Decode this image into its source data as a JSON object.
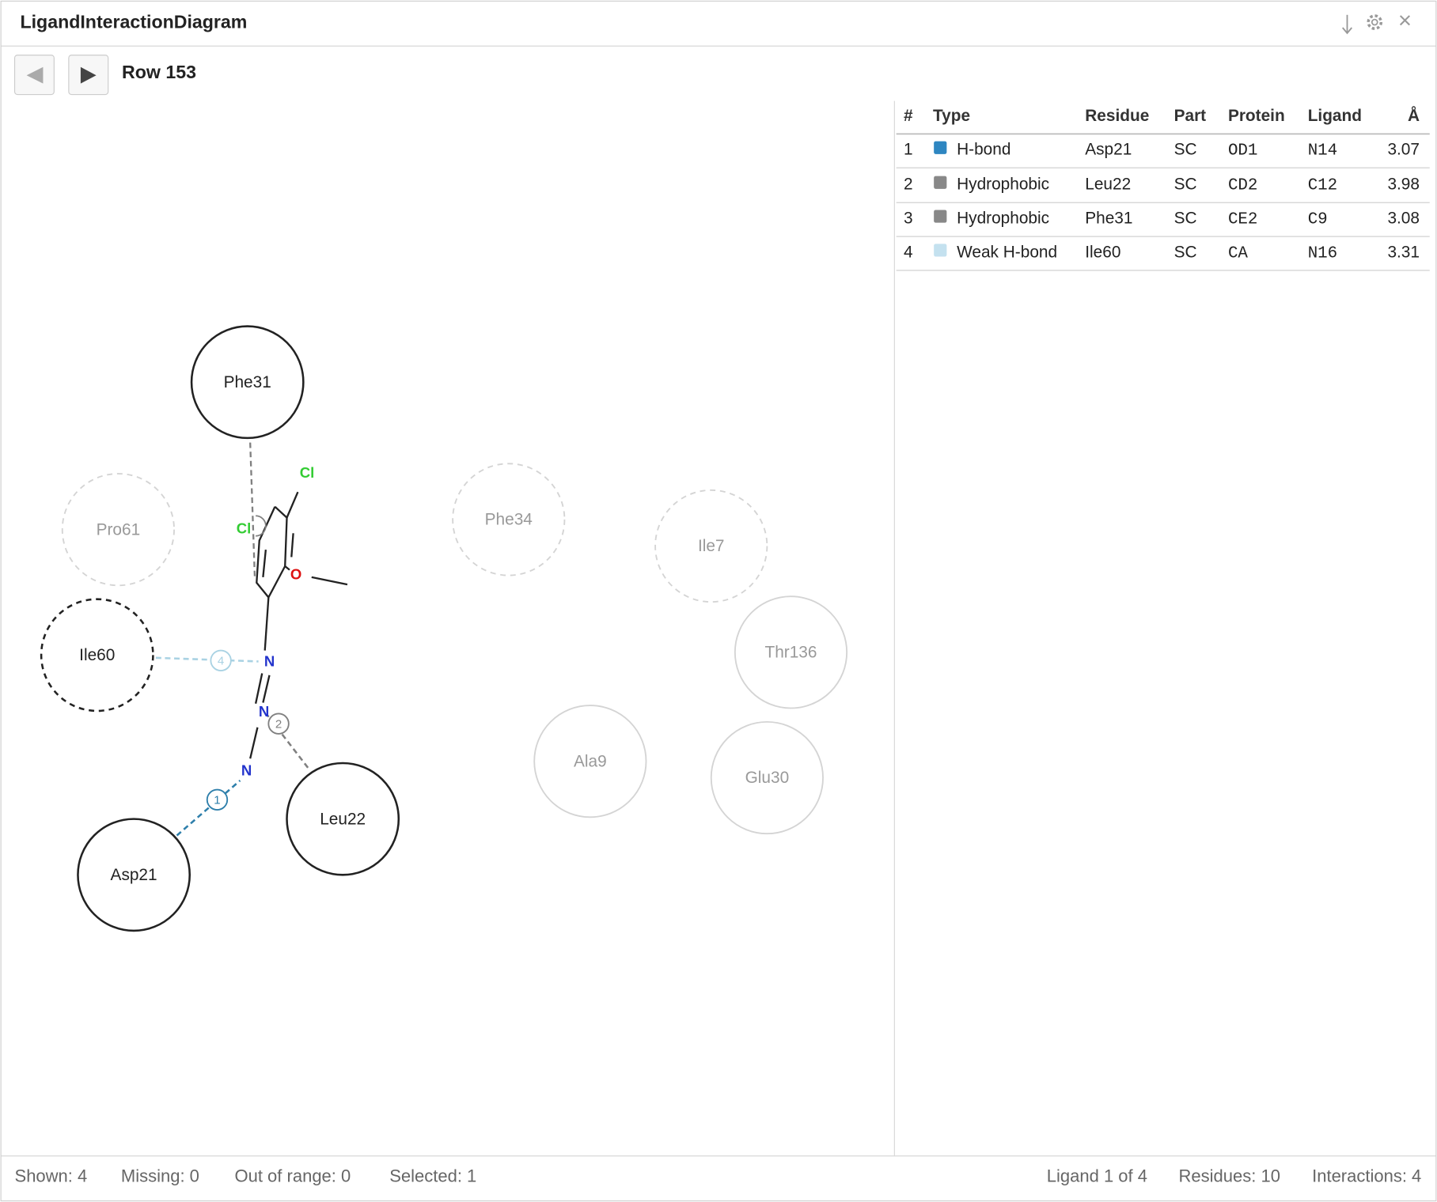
{
  "header": {
    "title": "LigandInteractionDiagram"
  },
  "toolbar": {
    "row_label": "Row 153"
  },
  "diagram": {
    "residues": [
      "Phe31",
      "Pro61",
      "Phe34",
      "Ile7",
      "Thr136",
      "Ile60",
      "Ala9",
      "Glu30",
      "Asp21",
      "Leu22"
    ],
    "atoms": [
      "Cl",
      "Cl",
      "O",
      "N",
      "N",
      "N"
    ],
    "interactions": [
      {
        "badge": 1,
        "color": "#2e7fab"
      },
      {
        "badge": 2,
        "color": "#808080"
      },
      {
        "badge": 4,
        "color": "#a9d2e3"
      }
    ]
  },
  "table": {
    "columns": [
      "#",
      "Type",
      "Residue",
      "Part",
      "Protein",
      "Ligand",
      "Å"
    ],
    "rows": [
      {
        "color": "#2e86c1",
        "cells": [
          1,
          "H-bond",
          "Asp21",
          "SC",
          "OD1",
          "N14",
          3.07
        ]
      },
      {
        "color": "#888888",
        "cells": [
          2,
          "Hydrophobic",
          "Leu22",
          "SC",
          "CD2",
          "C12",
          3.98
        ]
      },
      {
        "color": "#888888",
        "cells": [
          3,
          "Hydrophobic",
          "Phe31",
          "SC",
          "CE2",
          "C9",
          3.08
        ]
      },
      {
        "color": "#c4e1ef",
        "cells": [
          4,
          "Weak H-bond",
          "Ile60",
          "SC",
          "CA",
          "N16",
          3.31
        ]
      }
    ]
  },
  "status": {
    "left": [
      "Shown: 4",
      "Missing: 0",
      "Out of range: 0",
      "Selected: 1"
    ],
    "right": [
      "Ligand 1 of 4",
      "Residues: 10",
      "Interactions: 4"
    ]
  }
}
